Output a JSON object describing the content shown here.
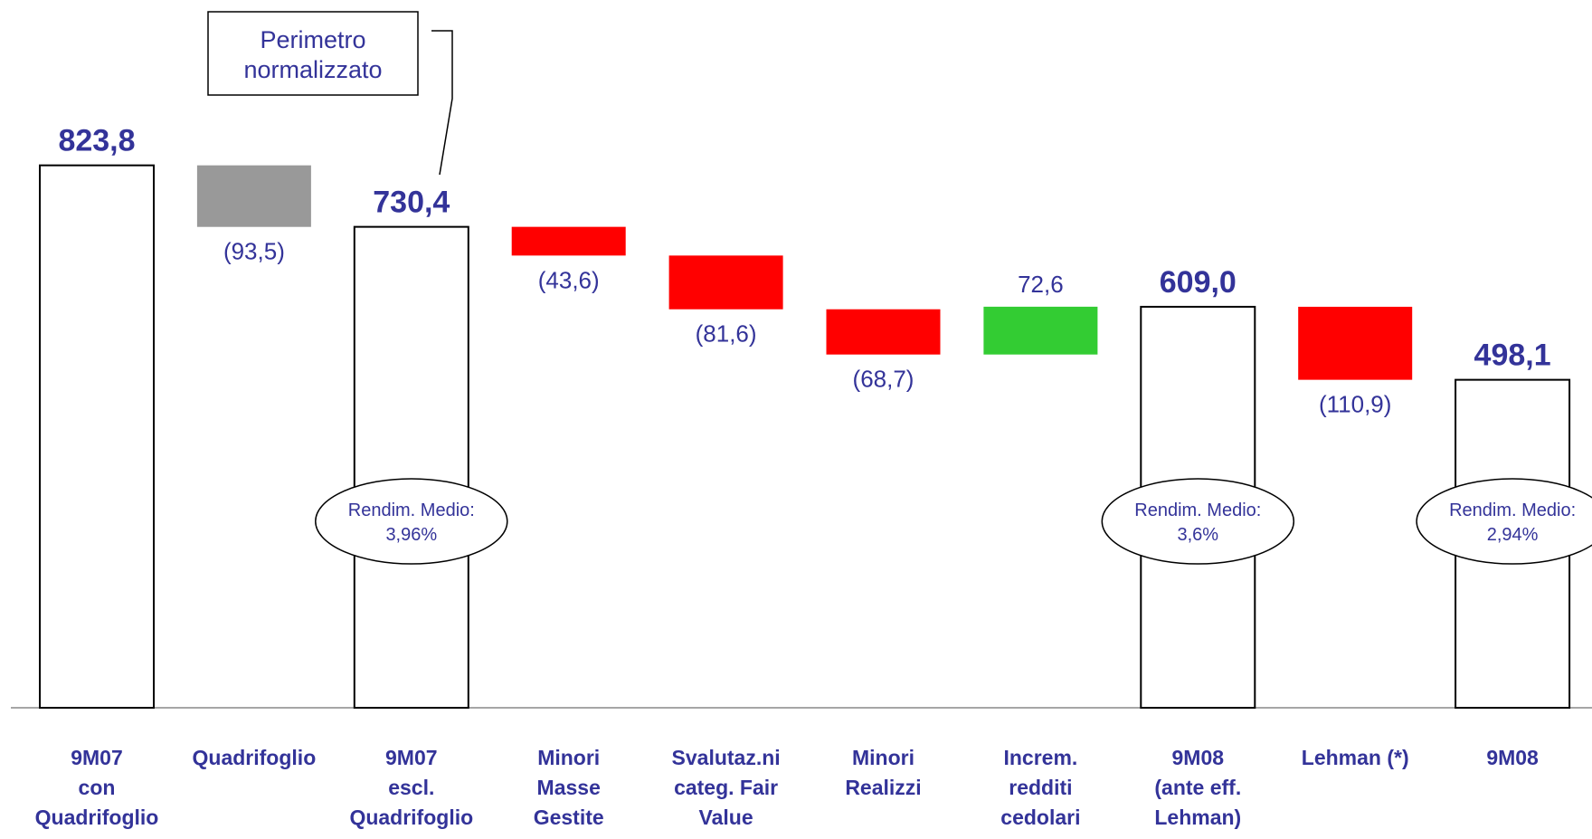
{
  "chart_data": {
    "type": "waterfall",
    "categories": [
      "9M07\ncon\nQuadrifoglio",
      "Quadrifoglio",
      "9M07\nescl.\nQuadrifoglio",
      "Minori\nMasse\nGestite",
      "Svalutaz.ni\ncateg. Fair\nValue",
      "Minori\nRealizzi",
      "Increm.\nredditi\ncedolari",
      "9M08\n(ante eff.\nLehman)",
      "Lehman (*)",
      "9M08"
    ],
    "kinds": [
      "total",
      "delta",
      "total",
      "delta",
      "delta",
      "delta",
      "delta",
      "total",
      "delta",
      "total"
    ],
    "values": [
      823.8,
      -93.5,
      730.4,
      -43.6,
      -81.6,
      -68.7,
      72.6,
      609.0,
      -110.9,
      498.1
    ],
    "value_labels": [
      "823,8",
      "(93,5)",
      "730,4",
      "(43,6)",
      "(81,6)",
      "(68,7)",
      "72,6",
      "609,0",
      "(110,9)",
      "498,1"
    ],
    "colors": [
      "#ffffff",
      "#999999",
      "#ffffff",
      "#ff0000",
      "#ff0000",
      "#ff0000",
      "#33cc33",
      "#ffffff",
      "#ff0000",
      "#ffffff"
    ],
    "callout": "Perimetro\nnormalizzato",
    "ellipse_labels": [
      "Rendim. Medio:\n3,96%",
      "Rendim. Medio:\n3,6%",
      "Rendim. Medio:\n2,94%"
    ]
  }
}
